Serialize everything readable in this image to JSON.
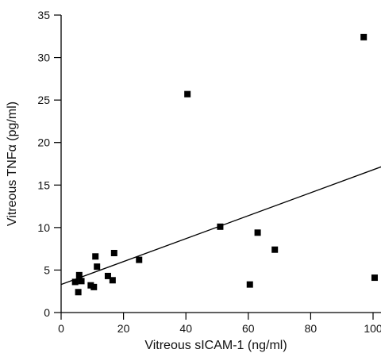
{
  "chart_data": {
    "type": "scatter",
    "xlabel": "Vitreous sICAM-1 (ng/ml)",
    "ylabel": "Vitreous TNFα (pg/ml)",
    "xlim": [
      0,
      100
    ],
    "ylim": [
      0,
      35
    ],
    "xticks": [
      "0",
      "20",
      "40",
      "60",
      "80",
      "100"
    ],
    "yticks": [
      "0",
      "5",
      "10",
      "15",
      "20",
      "25",
      "30",
      "35"
    ],
    "grid": false,
    "legend": "none",
    "marker": "square",
    "marker_color": "#000000",
    "points": [
      {
        "x": 4.5,
        "y": 3.6
      },
      {
        "x": 5.5,
        "y": 2.4
      },
      {
        "x": 5.8,
        "y": 4.4
      },
      {
        "x": 6.5,
        "y": 3.7
      },
      {
        "x": 9.5,
        "y": 3.2
      },
      {
        "x": 10.5,
        "y": 3.0
      },
      {
        "x": 11.0,
        "y": 6.6
      },
      {
        "x": 11.5,
        "y": 5.4
      },
      {
        "x": 15.0,
        "y": 4.3
      },
      {
        "x": 16.5,
        "y": 3.8
      },
      {
        "x": 17.0,
        "y": 7.0
      },
      {
        "x": 25.0,
        "y": 6.2
      },
      {
        "x": 40.5,
        "y": 25.7
      },
      {
        "x": 51.0,
        "y": 10.1
      },
      {
        "x": 60.5,
        "y": 3.3
      },
      {
        "x": 63.0,
        "y": 9.4
      },
      {
        "x": 68.5,
        "y": 7.4
      },
      {
        "x": 97.0,
        "y": 32.4
      },
      {
        "x": 100.5,
        "y": 4.1
      }
    ],
    "trendline": {
      "x": [
        0,
        103
      ],
      "y": [
        3.3,
        17.2
      ]
    }
  }
}
